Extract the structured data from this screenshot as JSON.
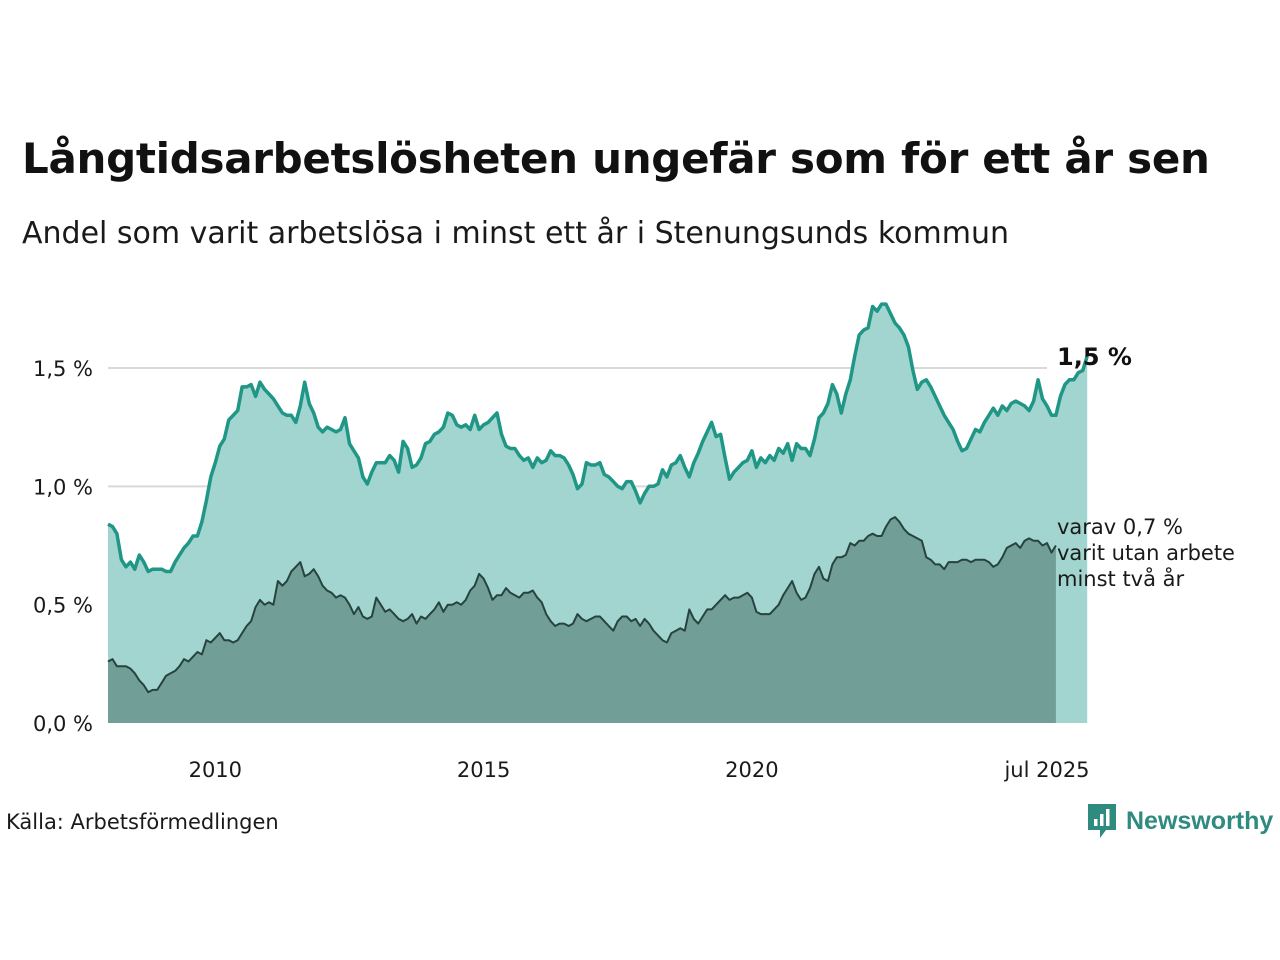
{
  "header": {
    "title": "Långtidsarbetslösheten ungefär som för ett år sen",
    "subtitle": "Andel som varit arbetslösa i minst ett år i Stenungsunds kommun"
  },
  "footer": {
    "source": "Källa: Arbetsförmedlingen",
    "brand": "Newsworthy",
    "brand_icon": "newsworthy-logo-icon"
  },
  "annotations": {
    "main_value_label": "1,5 %",
    "secondary_label_lines": [
      "varav 0,7 %",
      "varit utan arbete",
      "minst två år"
    ]
  },
  "colors": {
    "upper_area": "#a2d5cf",
    "upper_line": "#1f9686",
    "lower_area": "#719e97",
    "lower_line": "#27433f",
    "gridline": "#d9d9d9",
    "brand": "#2f8a80"
  },
  "chart_data": {
    "type": "area",
    "x_start": "2008-01",
    "x_end": "2025-07",
    "x_step": "month",
    "xticks": [
      {
        "x": "2010-01",
        "label": "2010"
      },
      {
        "x": "2015-01",
        "label": "2015"
      },
      {
        "x": "2020-01",
        "label": "2020"
      },
      {
        "x": "2025-07",
        "label": "jul 2025"
      }
    ],
    "yticks": [
      {
        "value": 0.0,
        "label": "0,0 %"
      },
      {
        "value": 0.5,
        "label": "0,5 %"
      },
      {
        "value": 1.0,
        "label": "1,0 %"
      },
      {
        "value": 1.5,
        "label": "1,5 %"
      }
    ],
    "ylim": [
      0,
      1.8
    ],
    "grid": "horizontal",
    "series": [
      {
        "values": [
          0.84,
          0.83,
          0.8,
          0.69,
          0.66,
          0.68,
          0.65,
          0.71,
          0.68,
          0.64,
          0.65,
          0.65,
          0.65,
          0.64,
          0.64,
          0.68,
          0.71,
          0.74,
          0.76,
          0.79,
          0.79,
          0.85,
          0.94,
          1.04,
          1.1,
          1.17,
          1.2,
          1.28,
          1.3,
          1.32,
          1.42,
          1.42,
          1.43,
          1.38,
          1.44,
          1.41,
          1.39,
          1.37,
          1.34,
          1.31,
          1.3,
          1.3,
          1.27,
          1.34,
          1.44,
          1.35,
          1.31,
          1.25,
          1.23,
          1.25,
          1.24,
          1.23,
          1.24,
          1.29,
          1.18,
          1.15,
          1.12,
          1.04,
          1.01,
          1.06,
          1.1,
          1.1,
          1.1,
          1.13,
          1.11,
          1.06,
          1.19,
          1.16,
          1.08,
          1.09,
          1.12,
          1.18,
          1.19,
          1.22,
          1.23,
          1.25,
          1.31,
          1.3,
          1.26,
          1.25,
          1.26,
          1.24,
          1.3,
          1.24,
          1.26,
          1.27,
          1.29,
          1.31,
          1.22,
          1.17,
          1.16,
          1.16,
          1.13,
          1.11,
          1.12,
          1.08,
          1.12,
          1.1,
          1.11,
          1.15,
          1.13,
          1.13,
          1.12,
          1.09,
          1.05,
          0.99,
          1.01,
          1.1,
          1.09,
          1.09,
          1.1,
          1.05,
          1.04,
          1.02,
          1.0,
          0.99,
          1.02,
          1.02,
          0.98,
          0.93,
          0.97,
          1.0,
          1.0,
          1.01,
          1.07,
          1.04,
          1.09,
          1.1,
          1.13,
          1.08,
          1.04,
          1.1,
          1.14,
          1.19,
          1.23,
          1.27,
          1.21,
          1.22,
          1.12,
          1.03,
          1.06,
          1.08,
          1.1,
          1.11,
          1.15,
          1.08,
          1.12,
          1.1,
          1.13,
          1.11,
          1.16,
          1.14,
          1.18,
          1.11,
          1.18,
          1.16,
          1.16,
          1.13,
          1.2,
          1.29,
          1.31,
          1.35,
          1.43,
          1.39,
          1.31,
          1.39,
          1.45,
          1.55,
          1.64,
          1.66,
          1.67,
          1.76,
          1.74,
          1.77,
          1.77,
          1.73,
          1.69,
          1.67,
          1.64,
          1.59,
          1.49,
          1.41,
          1.44,
          1.45,
          1.42,
          1.38,
          1.34,
          1.3,
          1.27,
          1.24,
          1.19,
          1.15,
          1.16,
          1.2,
          1.24,
          1.23,
          1.27,
          1.3,
          1.33,
          1.3,
          1.34,
          1.32,
          1.35,
          1.36,
          1.35,
          1.34,
          1.32,
          1.36,
          1.45,
          1.37,
          1.34,
          1.3,
          1.3,
          1.38,
          1.43,
          1.45,
          1.45,
          1.48,
          1.49,
          1.55
        ]
      },
      {
        "values": [
          0.26,
          0.27,
          0.24,
          0.24,
          0.24,
          0.23,
          0.21,
          0.18,
          0.16,
          0.13,
          0.14,
          0.14,
          0.17,
          0.2,
          0.21,
          0.22,
          0.24,
          0.27,
          0.26,
          0.28,
          0.3,
          0.29,
          0.35,
          0.34,
          0.36,
          0.38,
          0.35,
          0.35,
          0.34,
          0.35,
          0.38,
          0.41,
          0.43,
          0.49,
          0.52,
          0.5,
          0.51,
          0.5,
          0.6,
          0.58,
          0.6,
          0.64,
          0.66,
          0.68,
          0.62,
          0.63,
          0.65,
          0.62,
          0.58,
          0.56,
          0.55,
          0.53,
          0.54,
          0.53,
          0.5,
          0.46,
          0.49,
          0.45,
          0.44,
          0.45,
          0.53,
          0.5,
          0.47,
          0.48,
          0.46,
          0.44,
          0.43,
          0.44,
          0.46,
          0.42,
          0.45,
          0.44,
          0.46,
          0.48,
          0.51,
          0.47,
          0.5,
          0.5,
          0.51,
          0.5,
          0.52,
          0.56,
          0.58,
          0.63,
          0.61,
          0.57,
          0.52,
          0.54,
          0.54,
          0.57,
          0.55,
          0.54,
          0.53,
          0.55,
          0.55,
          0.56,
          0.53,
          0.51,
          0.46,
          0.43,
          0.41,
          0.42,
          0.42,
          0.41,
          0.42,
          0.46,
          0.44,
          0.43,
          0.44,
          0.45,
          0.45,
          0.43,
          0.41,
          0.39,
          0.43,
          0.45,
          0.45,
          0.43,
          0.44,
          0.41,
          0.44,
          0.42,
          0.39,
          0.37,
          0.35,
          0.34,
          0.38,
          0.39,
          0.4,
          0.39,
          0.48,
          0.44,
          0.42,
          0.45,
          0.48,
          0.48,
          0.5,
          0.52,
          0.54,
          0.52,
          0.53,
          0.53,
          0.54,
          0.55,
          0.53,
          0.47,
          0.46,
          0.46,
          0.46,
          0.48,
          0.5,
          0.54,
          0.57,
          0.6,
          0.55,
          0.52,
          0.53,
          0.57,
          0.63,
          0.66,
          0.61,
          0.6,
          0.67,
          0.7,
          0.7,
          0.71,
          0.76,
          0.75,
          0.77,
          0.77,
          0.79,
          0.8,
          0.79,
          0.79,
          0.83,
          0.86,
          0.87,
          0.85,
          0.82,
          0.8,
          0.79,
          0.78,
          0.77,
          0.7,
          0.69,
          0.67,
          0.67,
          0.65,
          0.68,
          0.68,
          0.68,
          0.69,
          0.69,
          0.68,
          0.69,
          0.69,
          0.69,
          0.68,
          0.66,
          0.67,
          0.7,
          0.74,
          0.75,
          0.76,
          0.74,
          0.77,
          0.78,
          0.77,
          0.77,
          0.75,
          0.76,
          0.72,
          0.75
        ]
      }
    ]
  }
}
